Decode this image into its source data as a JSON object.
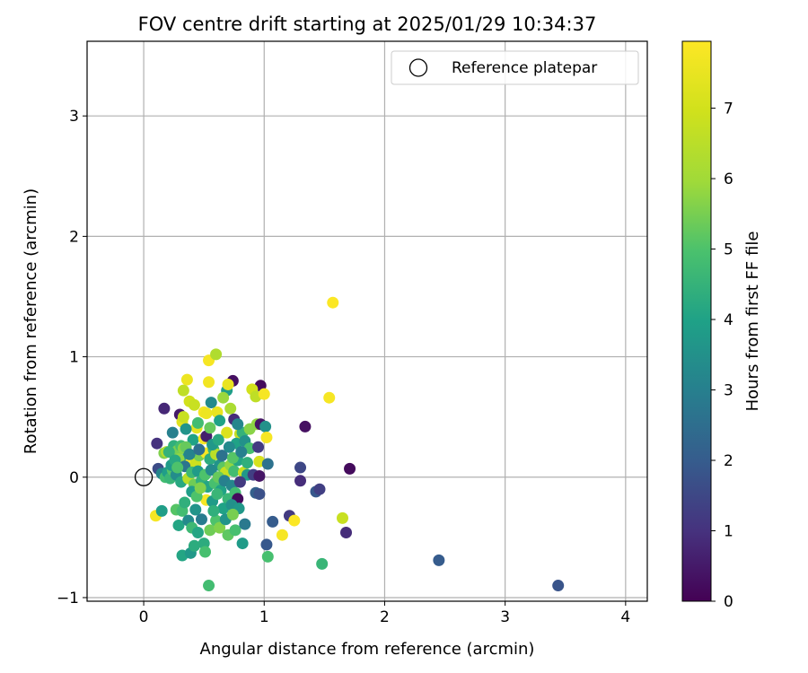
{
  "chart_data": {
    "type": "scatter",
    "title": "FOV centre drift starting at 2025/01/29 10:34:37",
    "xlabel": "Angular distance from reference (arcmin)",
    "ylabel": "Rotation from reference (arcmin)",
    "xlim": [
      -0.47,
      4.18
    ],
    "ylim": [
      -1.03,
      3.62
    ],
    "x_ticks": [
      "0",
      "1",
      "2",
      "3",
      "4"
    ],
    "y_ticks": [
      "−1",
      "0",
      "1",
      "2",
      "3"
    ],
    "x_tick_values": [
      0,
      1,
      2,
      3,
      4
    ],
    "y_tick_values": [
      -1,
      0,
      1,
      2,
      3
    ],
    "grid": true,
    "legend": {
      "placement": "top-right",
      "entries": [
        "Reference platepar"
      ]
    },
    "reference_point": {
      "x": 0,
      "y": 0,
      "marker": "open-circle"
    },
    "colorbar": {
      "label": "Hours from first FF file",
      "colormap": "viridis",
      "range": [
        0,
        7.95
      ],
      "ticks": [
        "0",
        "1",
        "2",
        "3",
        "4",
        "5",
        "6",
        "7"
      ],
      "tick_values": [
        0,
        1,
        2,
        3,
        4,
        5,
        6,
        7
      ]
    },
    "points": [
      [
        0.17,
        0.57,
        0.8
      ],
      [
        0.11,
        0.28,
        1.0
      ],
      [
        0.54,
        0.97,
        7.8
      ],
      [
        0.6,
        1.02,
        6.3
      ],
      [
        0.74,
        0.8,
        0.3
      ],
      [
        0.97,
        0.76,
        0.2
      ],
      [
        0.36,
        0.81,
        7.6
      ],
      [
        0.54,
        0.79,
        7.7
      ],
      [
        0.69,
        0.72,
        3.9
      ],
      [
        0.7,
        0.77,
        7.5
      ],
      [
        0.33,
        0.72,
        6.6
      ],
      [
        0.38,
        0.63,
        7.0
      ],
      [
        0.42,
        0.6,
        6.8
      ],
      [
        0.9,
        0.73,
        7.0
      ],
      [
        0.93,
        0.67,
        6.6
      ],
      [
        1.0,
        0.69,
        7.8
      ],
      [
        1.57,
        1.45,
        7.9
      ],
      [
        1.54,
        0.66,
        7.8
      ],
      [
        0.3,
        0.52,
        0.5
      ],
      [
        0.32,
        0.46,
        7.3
      ],
      [
        0.33,
        0.5,
        6.8
      ],
      [
        0.44,
        0.41,
        7.4
      ],
      [
        0.5,
        0.54,
        7.8
      ],
      [
        0.52,
        0.53,
        7.6
      ],
      [
        0.61,
        0.54,
        7.5
      ],
      [
        0.72,
        0.57,
        6.2
      ],
      [
        0.75,
        0.48,
        0.9
      ],
      [
        0.8,
        0.36,
        6.7
      ],
      [
        0.94,
        0.44,
        5.8
      ],
      [
        0.97,
        0.44,
        0.4
      ],
      [
        1.01,
        0.42,
        3.5
      ],
      [
        1.02,
        0.33,
        7.8
      ],
      [
        1.34,
        0.42,
        0.3
      ],
      [
        0.24,
        0.37,
        3.0
      ],
      [
        0.41,
        0.31,
        4.0
      ],
      [
        0.5,
        0.32,
        7.8
      ],
      [
        0.52,
        0.34,
        0.6
      ],
      [
        0.69,
        0.37,
        7.2
      ],
      [
        0.77,
        0.28,
        4.0
      ],
      [
        0.82,
        0.37,
        4.5
      ],
      [
        0.84,
        0.3,
        3.5
      ],
      [
        0.88,
        0.24,
        4.9
      ],
      [
        0.95,
        0.25,
        1.2
      ],
      [
        0.96,
        0.13,
        7.1
      ],
      [
        1.03,
        0.11,
        2.6
      ],
      [
        1.3,
        0.08,
        1.5
      ],
      [
        1.71,
        0.07,
        0.2
      ],
      [
        0.17,
        0.2,
        5.6
      ],
      [
        0.19,
        0.21,
        6.4
      ],
      [
        0.25,
        0.26,
        4.4
      ],
      [
        0.28,
        0.22,
        5.5
      ],
      [
        0.31,
        0.26,
        4.8
      ],
      [
        0.33,
        0.24,
        5.7
      ],
      [
        0.36,
        0.16,
        4.2
      ],
      [
        0.39,
        0.12,
        7.9
      ],
      [
        0.43,
        0.11,
        6.9
      ],
      [
        0.46,
        0.18,
        5.5
      ],
      [
        0.52,
        0.2,
        7.8
      ],
      [
        0.55,
        0.15,
        4.3
      ],
      [
        0.58,
        0.23,
        4.6
      ],
      [
        0.6,
        0.19,
        6.5
      ],
      [
        0.63,
        0.1,
        3.6
      ],
      [
        0.66,
        0.08,
        5.2
      ],
      [
        0.68,
        0.04,
        6.8
      ],
      [
        0.72,
        0.1,
        5.8
      ],
      [
        0.75,
        0.05,
        4.8
      ],
      [
        0.78,
        0.14,
        4.1
      ],
      [
        0.83,
        0.04,
        6.8
      ],
      [
        0.86,
        0.02,
        3.7
      ],
      [
        0.91,
        0.02,
        1.3
      ],
      [
        0.96,
        0.01,
        0.4
      ],
      [
        0.12,
        0.07,
        1.6
      ],
      [
        0.15,
        0.03,
        3.2
      ],
      [
        0.18,
        0.0,
        4.8
      ],
      [
        0.2,
        0.04,
        3.9
      ],
      [
        0.22,
        -0.01,
        4.6
      ],
      [
        0.24,
        0.06,
        5.1
      ],
      [
        0.27,
        0.02,
        3.4
      ],
      [
        0.29,
        0.15,
        5.8
      ],
      [
        0.31,
        -0.04,
        4.2
      ],
      [
        0.34,
        0.09,
        2.7
      ],
      [
        0.37,
        -0.01,
        6.5
      ],
      [
        0.4,
        0.04,
        4.7
      ],
      [
        0.42,
        -0.06,
        5.4
      ],
      [
        0.45,
        0.05,
        3.8
      ],
      [
        0.48,
        -0.03,
        4.4
      ],
      [
        0.51,
        0.02,
        5.0
      ],
      [
        0.53,
        -0.08,
        4.1
      ],
      [
        0.56,
        0.06,
        3.3
      ],
      [
        0.59,
        -0.05,
        4.9
      ],
      [
        0.62,
        0.0,
        5.3
      ],
      [
        0.64,
        -0.11,
        4.0
      ],
      [
        0.67,
        -0.03,
        3.0
      ],
      [
        0.7,
        -0.18,
        4.6
      ],
      [
        0.73,
        -0.07,
        3.2
      ],
      [
        0.76,
        -0.13,
        4.8
      ],
      [
        0.78,
        -0.18,
        0.2
      ],
      [
        0.8,
        -0.04,
        1.2
      ],
      [
        0.93,
        -0.13,
        2.1
      ],
      [
        0.96,
        -0.14,
        1.7
      ],
      [
        1.3,
        -0.03,
        0.9
      ],
      [
        1.43,
        -0.12,
        1.9
      ],
      [
        1.46,
        -0.1,
        1.3
      ],
      [
        0.1,
        -0.32,
        7.8
      ],
      [
        0.15,
        -0.28,
        3.9
      ],
      [
        0.27,
        -0.27,
        5.1
      ],
      [
        0.29,
        -0.4,
        4.1
      ],
      [
        0.32,
        -0.28,
        4.8
      ],
      [
        0.34,
        -0.21,
        4.4
      ],
      [
        0.37,
        -0.36,
        3.3
      ],
      [
        0.4,
        -0.42,
        4.7
      ],
      [
        0.43,
        -0.27,
        3.6
      ],
      [
        0.45,
        -0.46,
        4.1
      ],
      [
        0.48,
        -0.35,
        2.9
      ],
      [
        0.5,
        -0.55,
        4.3
      ],
      [
        0.52,
        -0.19,
        7.8
      ],
      [
        0.55,
        -0.44,
        5.4
      ],
      [
        0.57,
        -0.2,
        3.8
      ],
      [
        0.6,
        -0.36,
        5.0
      ],
      [
        0.63,
        -0.42,
        5.6
      ],
      [
        0.66,
        -0.26,
        4.0
      ],
      [
        0.7,
        -0.48,
        5.2
      ],
      [
        0.73,
        -0.23,
        3.5
      ],
      [
        0.76,
        -0.44,
        4.9
      ],
      [
        0.79,
        -0.26,
        3.7
      ],
      [
        0.82,
        -0.55,
        3.8
      ],
      [
        0.84,
        -0.39,
        2.8
      ],
      [
        1.02,
        -0.56,
        1.9
      ],
      [
        1.07,
        -0.37,
        2.0
      ],
      [
        1.15,
        -0.48,
        7.8
      ],
      [
        1.21,
        -0.32,
        1.2
      ],
      [
        1.25,
        -0.36,
        7.9
      ],
      [
        1.65,
        -0.34,
        6.8
      ],
      [
        1.68,
        -0.46,
        0.9
      ],
      [
        0.32,
        -0.65,
        4.1
      ],
      [
        0.39,
        -0.63,
        3.7
      ],
      [
        0.42,
        -0.57,
        4.3
      ],
      [
        0.51,
        -0.62,
        4.9
      ],
      [
        1.03,
        -0.66,
        4.9
      ],
      [
        1.48,
        -0.72,
        4.6
      ],
      [
        0.54,
        -0.9,
        4.8
      ],
      [
        2.45,
        -0.69,
        2.0
      ],
      [
        3.44,
        -0.9,
        1.8
      ],
      [
        0.21,
        0.21,
        4.5
      ],
      [
        0.23,
        0.1,
        3.8
      ],
      [
        0.26,
        0.14,
        4.2
      ],
      [
        0.28,
        0.08,
        5.0
      ],
      [
        0.35,
        0.25,
        5.3
      ],
      [
        0.38,
        0.19,
        3.1
      ],
      [
        0.46,
        0.23,
        2.5
      ],
      [
        0.57,
        0.27,
        3.7
      ],
      [
        0.62,
        0.31,
        4.2
      ],
      [
        0.65,
        0.18,
        2.6
      ],
      [
        0.71,
        0.25,
        3.3
      ],
      [
        0.74,
        0.16,
        5.1
      ],
      [
        0.81,
        0.21,
        3.0
      ],
      [
        0.86,
        0.12,
        4.4
      ],
      [
        0.4,
        -0.12,
        3.9
      ],
      [
        0.44,
        -0.16,
        5.0
      ],
      [
        0.47,
        -0.09,
        5.6
      ],
      [
        0.58,
        -0.28,
        4.4
      ],
      [
        0.61,
        -0.14,
        4.6
      ],
      [
        0.68,
        -0.35,
        3.6
      ],
      [
        0.74,
        -0.31,
        5.5
      ],
      [
        0.35,
        0.4,
        3.6
      ],
      [
        0.45,
        0.45,
        4.8
      ],
      [
        0.55,
        0.41,
        5.3
      ],
      [
        0.63,
        0.47,
        4.0
      ],
      [
        0.78,
        0.44,
        3.2
      ],
      [
        0.88,
        0.4,
        5.7
      ],
      [
        0.56,
        0.62,
        3.3
      ],
      [
        0.66,
        0.66,
        5.9
      ]
    ]
  }
}
